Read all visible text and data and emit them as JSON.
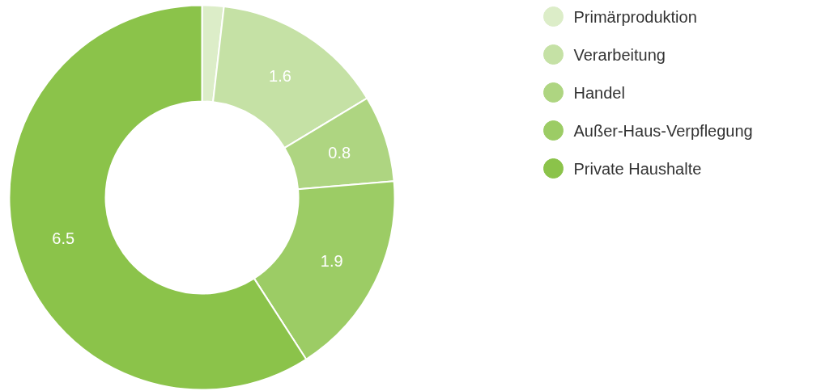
{
  "chart_data": {
    "type": "donut",
    "categories": [
      "Primärproduktion",
      "Verarbeitung",
      "Handel",
      "Außer-Haus-Verpflegung",
      "Private Haushalte"
    ],
    "values": [
      0.2,
      1.6,
      0.8,
      1.9,
      6.5
    ],
    "value_labels": [
      null,
      "1.6",
      "0.8",
      "1.9",
      "6.5"
    ],
    "colors": [
      "#dcedc8",
      "#c5e1a5",
      "#aed581",
      "#9ccc65",
      "#8bc34a"
    ],
    "legend": "top right"
  }
}
